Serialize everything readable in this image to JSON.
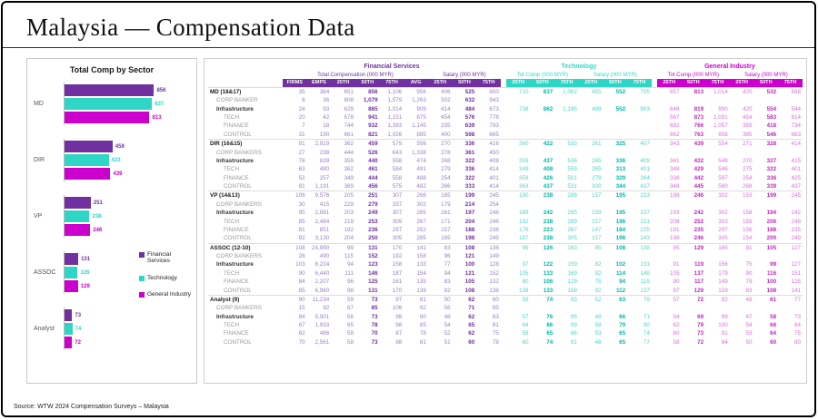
{
  "slide": {
    "title": "Malaysia — Compensation Data",
    "source": "Source: WTW 2024 Compensation Surveys – Malaysia"
  },
  "colors": {
    "financial_services": "#7030A0",
    "technology": "#2FD6C6",
    "general_industry": "#CC00CC"
  },
  "chart_data": {
    "type": "bar",
    "orientation": "horizontal",
    "title": "Total Comp by Sector",
    "categories": [
      "MD",
      "DIR",
      "VP",
      "ASSOC",
      "Analyst"
    ],
    "series": [
      {
        "name": "Financial Services",
        "color": "#7030A0",
        "values": [
          856,
          459,
          251,
          131,
          73
        ]
      },
      {
        "name": "Technology",
        "color": "#2FD6C6",
        "values": [
          837,
          422,
          238,
          126,
          74
        ]
      },
      {
        "name": "General Industry",
        "color": "#CC00CC",
        "values": [
          813,
          439,
          246,
          129,
          72
        ]
      }
    ],
    "xlim": [
      0,
      900
    ],
    "grid": false,
    "legend_position": "right-bottom",
    "value_labels": true
  },
  "table": {
    "groups": [
      {
        "label": "Financial Services",
        "color": "#7030A0",
        "subgroups": [
          {
            "label": "Total Compensation (000 MYR)",
            "cols": [
              "FIRMS",
              "EMPS",
              "25TH",
              "50TH",
              "75TH",
              "AVG"
            ]
          },
          {
            "label": "Salary (000 MYR)",
            "cols": [
              "25TH",
              "50TH",
              "75TH"
            ]
          }
        ]
      },
      {
        "label": "Technology",
        "color": "#2FD6C6",
        "subgroups": [
          {
            "label": "Tot Comp (000 MYR)",
            "cols": [
              "25TH",
              "50TH",
              "75TH"
            ]
          },
          {
            "label": "Salary (000 MYR)",
            "cols": [
              "25TH",
              "50TH",
              "75TH"
            ]
          }
        ]
      },
      {
        "label": "General Industry",
        "color": "#CC00CC",
        "subgroups": [
          {
            "label": "Tot Comp (000 MYR)",
            "cols": [
              "25TH",
              "50TH",
              "75TH"
            ]
          },
          {
            "label": "Salary (000 MYR)",
            "cols": [
              "25TH",
              "50TH",
              "75TH"
            ]
          }
        ]
      }
    ],
    "rows": [
      {
        "label": "MD (18&17)",
        "level": "group",
        "fs": [
          "35",
          "364",
          "651",
          "856",
          "1,106",
          "956",
          "406",
          "525",
          "650"
        ],
        "tech": [
          "710",
          "837",
          "1,062",
          "455",
          "552",
          "705"
        ],
        "gi": [
          "657",
          "813",
          "1,014",
          "420",
          "532",
          "568"
        ]
      },
      {
        "label": "CORP BANKER",
        "level": "sub",
        "fs": [
          "8",
          "36",
          "808",
          "1,079",
          "1,579",
          "1,263",
          "502",
          "632",
          "943"
        ],
        "tech": [
          "",
          "",
          "",
          "",
          "",
          ""
        ],
        "gi": [
          "",
          "",
          "",
          "",
          "",
          ""
        ]
      },
      {
        "label": "Infrastructure",
        "level": "infra",
        "fs": [
          "24",
          "93",
          "629",
          "865",
          "1,014",
          "909",
          "414",
          "484",
          "673"
        ],
        "tech": [
          "738",
          "862",
          "1,195",
          "489",
          "552",
          "903"
        ],
        "gi": [
          "648",
          "819",
          "990",
          "420",
          "554",
          "544"
        ]
      },
      {
        "label": "TECH",
        "level": "sub2",
        "fs": [
          "20",
          "42",
          "678",
          "941",
          "1,151",
          "875",
          "454",
          "576",
          "778"
        ],
        "tech": [
          "",
          "",
          "",
          "",
          "",
          ""
        ],
        "gi": [
          "567",
          "873",
          "1,091",
          "454",
          "583",
          "814"
        ]
      },
      {
        "label": "FINANCE",
        "level": "sub2",
        "fs": [
          "7",
          "18",
          "744",
          "932",
          "1,393",
          "1,145",
          "335",
          "639",
          "793"
        ],
        "tech": [
          "",
          "",
          "",
          "",
          "",
          ""
        ],
        "gi": [
          "682",
          "766",
          "1,057",
          "359",
          "418",
          "734"
        ]
      },
      {
        "label": "CONTROL",
        "level": "sub2",
        "fs": [
          "31",
          "190",
          "661",
          "821",
          "1,026",
          "885",
          "400",
          "598",
          "665"
        ],
        "tech": [
          "",
          "",
          "",
          "",
          "",
          ""
        ],
        "gi": [
          "662",
          "763",
          "958",
          "385",
          "546",
          "663"
        ]
      },
      {
        "label": "DIR (16&15)",
        "level": "group",
        "fs": [
          "91",
          "2,919",
          "362",
          "459",
          "579",
          "556",
          "270",
          "336",
          "416"
        ],
        "tech": [
          "360",
          "422",
          "533",
          "261",
          "325",
          "407"
        ],
        "gi": [
          "343",
          "439",
          "554",
          "271",
          "328",
          "414"
        ]
      },
      {
        "label": "CORP BANKERS",
        "level": "sub",
        "fs": [
          "27",
          "238",
          "444",
          "526",
          "643",
          "1,338",
          "278",
          "361",
          "450"
        ],
        "tech": [
          "",
          "",
          "",
          "",
          "",
          ""
        ],
        "gi": [
          "",
          "",
          "",
          "",
          "",
          ""
        ]
      },
      {
        "label": "Infrastructure",
        "level": "infra",
        "fs": [
          "78",
          "839",
          "359",
          "440",
          "558",
          "474",
          "268",
          "322",
          "408"
        ],
        "tech": [
          "359",
          "437",
          "536",
          "265",
          "336",
          "409"
        ],
        "gi": [
          "341",
          "432",
          "548",
          "270",
          "327",
          "415"
        ]
      },
      {
        "label": "TECH",
        "level": "sub2",
        "fs": [
          "63",
          "480",
          "362",
          "461",
          "584",
          "491",
          "279",
          "336",
          "414"
        ],
        "tech": [
          "349",
          "408",
          "559",
          "265",
          "313",
          "401"
        ],
        "gi": [
          "348",
          "429",
          "546",
          "275",
          "322",
          "401"
        ]
      },
      {
        "label": "FINANCE",
        "level": "sub2",
        "fs": [
          "52",
          "257",
          "349",
          "444",
          "558",
          "488",
          "254",
          "322",
          "401"
        ],
        "tech": [
          "358",
          "426",
          "501",
          "279",
          "329",
          "394"
        ],
        "gi": [
          "338",
          "442",
          "597",
          "254",
          "336",
          "425"
        ]
      },
      {
        "label": "CONTROL",
        "level": "sub2",
        "fs": [
          "81",
          "1,191",
          "369",
          "456",
          "575",
          "482",
          "266",
          "333",
          "414"
        ],
        "tech": [
          "363",
          "437",
          "531",
          "300",
          "344",
          "437"
        ],
        "gi": [
          "348",
          "445",
          "580",
          "268",
          "339",
          "437"
        ]
      },
      {
        "label": "VP (14&13)",
        "level": "group",
        "fs": [
          "106",
          "9,576",
          "205",
          "251",
          "307",
          "266",
          "165",
          "199",
          "245"
        ],
        "tech": [
          "190",
          "238",
          "288",
          "157",
          "195",
          "233"
        ],
        "gi": [
          "198",
          "246",
          "302",
          "153",
          "199",
          "245"
        ]
      },
      {
        "label": "CORP BANKERS",
        "level": "sub",
        "fs": [
          "30",
          "415",
          "229",
          "279",
          "337",
          "302",
          "179",
          "214",
          "254"
        ],
        "tech": [
          "",
          "",
          "",
          "",
          "",
          ""
        ],
        "gi": [
          "",
          "",
          "",
          "",
          "",
          ""
        ]
      },
      {
        "label": "Infrastructure",
        "level": "infra",
        "fs": [
          "95",
          "2,891",
          "203",
          "249",
          "307",
          "265",
          "161",
          "197",
          "248"
        ],
        "tech": [
          "189",
          "242",
          "295",
          "159",
          "195",
          "237"
        ],
        "gi": [
          "193",
          "242",
          "302",
          "158",
          "194",
          "242"
        ]
      },
      {
        "label": "TECH",
        "level": "sub2",
        "fs": [
          "85",
          "2,484",
          "219",
          "253",
          "309",
          "267",
          "171",
          "204",
          "246"
        ],
        "tech": [
          "192",
          "238",
          "289",
          "157",
          "196",
          "231"
        ],
        "gi": [
          "208",
          "252",
          "303",
          "159",
          "206",
          "248"
        ]
      },
      {
        "label": "FINANCE",
        "level": "sub2",
        "fs": [
          "81",
          "851",
          "192",
          "236",
          "297",
          "252",
          "157",
          "188",
          "236"
        ],
        "tech": [
          "176",
          "223",
          "267",
          "147",
          "184",
          "225"
        ],
        "gi": [
          "191",
          "235",
          "297",
          "156",
          "188",
          "235"
        ]
      },
      {
        "label": "CONTROL",
        "level": "sub2",
        "fs": [
          "92",
          "3,130",
          "204",
          "250",
          "305",
          "265",
          "165",
          "198",
          "245"
        ],
        "tech": [
          "187",
          "238",
          "305",
          "157",
          "198",
          "243"
        ],
        "gi": [
          "198",
          "246",
          "305",
          "154",
          "200",
          "249"
        ]
      },
      {
        "label": "ASSOC (12-10)",
        "level": "group",
        "fs": [
          "108",
          "24,990",
          "99",
          "131",
          "170",
          "141",
          "83",
          "108",
          "138"
        ],
        "tech": [
          "99",
          "126",
          "163",
          "85",
          "108",
          "138"
        ],
        "gi": [
          "95",
          "129",
          "165",
          "81",
          "105",
          "127"
        ]
      },
      {
        "label": "CORP BANKERS",
        "level": "sub",
        "fs": [
          "28",
          "490",
          "115",
          "152",
          "192",
          "158",
          "96",
          "121",
          "149"
        ],
        "tech": [
          "",
          "",
          "",
          "",
          "",
          ""
        ],
        "gi": [
          "",
          "",
          "",
          "",
          "",
          ""
        ]
      },
      {
        "label": "Infrastructure",
        "level": "infra",
        "fs": [
          "103",
          "8,224",
          "94",
          "123",
          "158",
          "133",
          "77",
          "100",
          "128"
        ],
        "tech": [
          "97",
          "122",
          "159",
          "82",
          "102",
          "131"
        ],
        "gi": [
          "91",
          "119",
          "156",
          "75",
          "99",
          "127"
        ]
      },
      {
        "label": "TECH",
        "level": "sub2",
        "fs": [
          "90",
          "6,440",
          "111",
          "146",
          "187",
          "154",
          "94",
          "121",
          "152"
        ],
        "tech": [
          "105",
          "133",
          "169",
          "92",
          "114",
          "148"
        ],
        "gi": [
          "105",
          "137",
          "179",
          "90",
          "116",
          "151"
        ]
      },
      {
        "label": "FINANCE",
        "level": "sub2",
        "fs": [
          "84",
          "2,207",
          "96",
          "125",
          "161",
          "135",
          "83",
          "105",
          "132"
        ],
        "tech": [
          "80",
          "106",
          "129",
          "75",
          "94",
          "115"
        ],
        "gi": [
          "90",
          "117",
          "149",
          "79",
          "100",
          "125"
        ]
      },
      {
        "label": "CONTROL",
        "level": "sub2",
        "fs": [
          "85",
          "6,960",
          "98",
          "131",
          "170",
          "139",
          "82",
          "108",
          "138"
        ],
        "tech": [
          "108",
          "133",
          "168",
          "92",
          "112",
          "137"
        ],
        "gi": [
          "97",
          "129",
          "159",
          "83",
          "108",
          "141"
        ]
      },
      {
        "label": "Analyst (9)",
        "level": "group",
        "fs": [
          "90",
          "11,234",
          "59",
          "73",
          "97",
          "81",
          "50",
          "62",
          "80"
        ],
        "tech": [
          "59",
          "74",
          "93",
          "52",
          "63",
          "79"
        ],
        "gi": [
          "57",
          "72",
          "92",
          "48",
          "61",
          "77"
        ]
      },
      {
        "label": "CORP BANKERS",
        "level": "sub",
        "fs": [
          "15",
          "92",
          "67",
          "85",
          "106",
          "92",
          "56",
          "71",
          "85"
        ],
        "tech": [
          "",
          "",
          "",
          "",
          "",
          ""
        ],
        "gi": [
          "",
          "",
          "",
          "",
          "",
          ""
        ]
      },
      {
        "label": "Infrastructure",
        "level": "infra",
        "fs": [
          "84",
          "5,901",
          "56",
          "73",
          "98",
          "80",
          "48",
          "62",
          "83"
        ],
        "tech": [
          "57",
          "76",
          "95",
          "48",
          "66",
          "71"
        ],
        "gi": [
          "54",
          "69",
          "89",
          "47",
          "58",
          "73"
        ]
      },
      {
        "label": "TECH",
        "level": "sub2",
        "fs": [
          "67",
          "1,933",
          "65",
          "78",
          "98",
          "85",
          "54",
          "65",
          "81"
        ],
        "tech": [
          "64",
          "86",
          "99",
          "58",
          "79",
          "90"
        ],
        "gi": [
          "62",
          "79",
          "100",
          "54",
          "66",
          "84"
        ]
      },
      {
        "label": "FINANCE",
        "level": "sub2",
        "fs": [
          "62",
          "486",
          "59",
          "70",
          "87",
          "78",
          "52",
          "62",
          "75"
        ],
        "tech": [
          "58",
          "65",
          "86",
          "53",
          "65",
          "74"
        ],
        "gi": [
          "60",
          "73",
          "91",
          "53",
          "64",
          "75"
        ]
      },
      {
        "label": "CONTROL",
        "level": "sub2",
        "fs": [
          "70",
          "2,561",
          "58",
          "73",
          "98",
          "81",
          "51",
          "60",
          "78"
        ],
        "tech": [
          "60",
          "74",
          "91",
          "48",
          "65",
          "77"
        ],
        "gi": [
          "58",
          "72",
          "94",
          "50",
          "60",
          "80"
        ]
      }
    ]
  }
}
